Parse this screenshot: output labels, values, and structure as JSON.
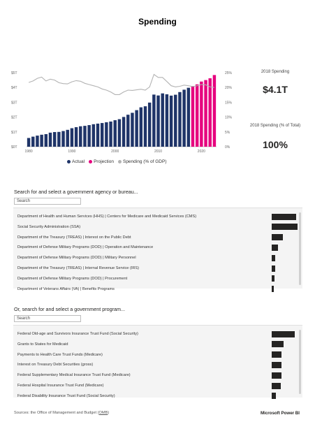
{
  "page": {
    "title": "Spending"
  },
  "chart_data": {
    "type": "bar",
    "title": "",
    "x_ticks": [
      "1980",
      "1990",
      "2000",
      "2010",
      "2020"
    ],
    "y_left_ticks": [
      "$0T",
      "$1T",
      "$2T",
      "$3T",
      "$4T",
      "$5T"
    ],
    "y_right_ticks": [
      "0%",
      "5%",
      "10%",
      "15%",
      "20%",
      "25%"
    ],
    "ylim_left": [
      0,
      5
    ],
    "ylim_right": [
      0,
      25
    ],
    "years": [
      1980,
      1981,
      1982,
      1983,
      1984,
      1985,
      1986,
      1987,
      1988,
      1989,
      1990,
      1991,
      1992,
      1993,
      1994,
      1995,
      1996,
      1997,
      1998,
      1999,
      2000,
      2001,
      2002,
      2003,
      2004,
      2005,
      2006,
      2007,
      2008,
      2009,
      2010,
      2011,
      2012,
      2013,
      2014,
      2015,
      2016,
      2017,
      2018,
      2019,
      2020,
      2021,
      2022,
      2023
    ],
    "series": [
      {
        "name": "Actual",
        "color": "#1f3468",
        "years_range": [
          1980,
          2017
        ],
        "values": [
          0.59,
          0.68,
          0.75,
          0.81,
          0.85,
          0.95,
          0.99,
          1.0,
          1.06,
          1.14,
          1.25,
          1.32,
          1.38,
          1.41,
          1.46,
          1.52,
          1.56,
          1.6,
          1.65,
          1.7,
          1.79,
          1.86,
          2.01,
          2.16,
          2.29,
          2.47,
          2.66,
          2.73,
          2.98,
          3.52,
          3.46,
          3.6,
          3.54,
          3.45,
          3.51,
          3.69,
          3.85,
          3.98
        ]
      },
      {
        "name": "Projection",
        "color": "#e6007e",
        "years_range": [
          2018,
          2023
        ],
        "values": [
          4.1,
          4.21,
          4.4,
          4.5,
          4.62,
          4.84
        ]
      },
      {
        "name": "Spending (% of GDP)",
        "color": "#b3b3b3",
        "type": "line",
        "axis": "right",
        "values": [
          21.7,
          22.2,
          23.1,
          23.5,
          22.2,
          22.8,
          22.5,
          21.6,
          21.3,
          21.2,
          21.9,
          22.3,
          22.1,
          21.4,
          21.0,
          20.6,
          20.2,
          19.5,
          19.1,
          18.5,
          17.6,
          17.6,
          18.5,
          19.1,
          19.0,
          19.2,
          19.4,
          19.1,
          20.2,
          24.4,
          23.4,
          23.4,
          22.0,
          20.6,
          20.2,
          20.4,
          20.8,
          20.6,
          20.3,
          20.6,
          21.0,
          20.9,
          20.2,
          20.0
        ]
      }
    ]
  },
  "legend": [
    {
      "name": "Actual",
      "color": "#1f3468"
    },
    {
      "name": "Projection",
      "color": "#e6007e"
    },
    {
      "name": "Spending (% of GDP)",
      "color": "#b3b3b3"
    }
  ],
  "kpis": [
    {
      "label": "2018 Spending",
      "value": "$4.1T"
    },
    {
      "label": "2018 Spending (% of Total)",
      "value": "100%"
    }
  ],
  "agency_search": {
    "title": "Search for and select a government agency or bureau...",
    "placeholder": "Search",
    "items": [
      {
        "label": "Department of Health and Human Services (HHS) | Centers for Medicare and Medicaid Services (CMS)",
        "value": 0.92
      },
      {
        "label": "Social Security Administration (SSA)",
        "value": 0.97
      },
      {
        "label": "Department of the Treasury (TREAS) | Interest on the Public Debt",
        "value": 0.43
      },
      {
        "label": "Department of Defense Military Programs (DOD) | Operation and Maintenance",
        "value": 0.23
      },
      {
        "label": "Department of Defense Military Programs (DOD) | Military Personnel",
        "value": 0.14
      },
      {
        "label": "Department of the Treasury (TREAS) | Internal Revenue Service (IRS)",
        "value": 0.13
      },
      {
        "label": "Department of Defense Military Programs (DOD) | Procurement",
        "value": 0.1
      },
      {
        "label": "Department of Veterans Affairs (VA) | Benefits Programs",
        "value": 0.09
      }
    ]
  },
  "program_search": {
    "title": "Or, search for and select a government program...",
    "placeholder": "Search",
    "items": [
      {
        "label": "Federal Old-age and Survivors Insurance Trust Fund (Social Security)",
        "value": 0.86
      },
      {
        "label": "Grants to States for Medicaid",
        "value": 0.44
      },
      {
        "label": "Payments to Health Care Trust Funds (Medicare)",
        "value": 0.37
      },
      {
        "label": "Interest on Treasury Debt Securities (gross)",
        "value": 0.36
      },
      {
        "label": "Federal Supplementary Medical Insurance Trust Fund (Medicare)",
        "value": 0.36
      },
      {
        "label": "Federal Hospital Insurance Trust Fund (Medicare)",
        "value": 0.33
      },
      {
        "label": "Federal Disability Insurance Trust Fund (Social Security)",
        "value": 0.17
      }
    ]
  },
  "footer": {
    "source_prefix": "Sources: the Office of Management and Budget (",
    "source_link": "OMB",
    "source_suffix": ")",
    "brand": "Microsoft Power BI"
  }
}
